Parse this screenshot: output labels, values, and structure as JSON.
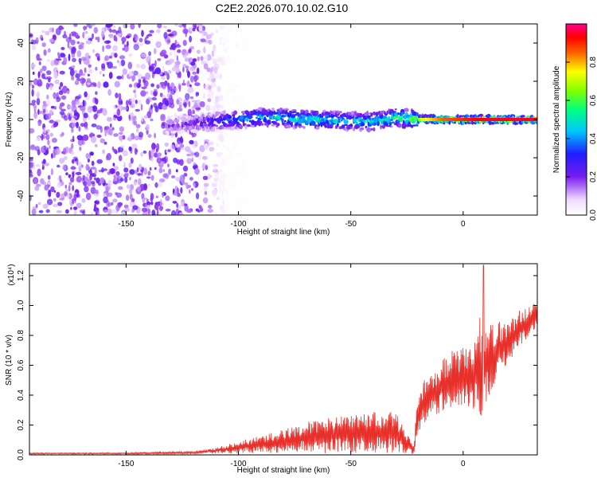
{
  "title": "C2E2.2026.070.10.02.G10",
  "chart_data": [
    {
      "type": "heatmap",
      "title": "C2E2.2026.070.10.02.G10",
      "xlabel": "Height of straight line (km)",
      "ylabel": "Frequency (Hz)",
      "xlim": [
        -193,
        33
      ],
      "ylim": [
        -50,
        50
      ],
      "xticks": [
        "-150",
        "-100",
        "-50",
        "0"
      ],
      "xtick_values": [
        -150,
        -100,
        -50,
        0
      ],
      "yticks": [
        "40",
        "20",
        "0",
        "-20",
        "-40"
      ],
      "ytick_values": [
        40,
        20,
        0,
        -20,
        -40
      ],
      "colorbar": {
        "label": "Normalized spectral amplitude",
        "range": [
          0,
          1
        ],
        "ticks": [
          "0.0",
          "0.2",
          "0.4",
          "0.6",
          "0.8"
        ],
        "tick_values": [
          0.0,
          0.2,
          0.4,
          0.6,
          0.8
        ],
        "colormap": "rainbow (white-violet-blue-cyan-green-yellow-red-magenta)"
      },
      "noise_region_x": [
        -193,
        -108
      ],
      "signal_trace": {
        "x": [
          -132,
          -120,
          -110,
          -100,
          -90,
          -80,
          -70,
          -60,
          -50,
          -40,
          -30,
          -20,
          -10,
          0,
          10,
          20,
          33
        ],
        "frequency": [
          -3,
          -2,
          -1,
          0,
          1,
          1,
          0,
          0,
          -1,
          -1,
          1,
          0,
          0,
          0,
          0,
          0,
          0
        ],
        "peak_amplitude": [
          0.2,
          0.25,
          0.35,
          0.45,
          0.5,
          0.55,
          0.55,
          0.55,
          0.5,
          0.55,
          0.6,
          0.7,
          0.85,
          0.9,
          0.95,
          0.95,
          0.95
        ]
      }
    },
    {
      "type": "line",
      "xlabel": "Height of straight line (km)",
      "ylabel": "SNR (10 * v/v)",
      "y_multiplier": "(x10⁴)",
      "xlim": [
        -193,
        33
      ],
      "ylim": [
        0,
        1.28
      ],
      "xticks": [
        "-150",
        "-100",
        "-50",
        "0"
      ],
      "xtick_values": [
        -150,
        -100,
        -50,
        0
      ],
      "yticks": [
        "0.0",
        "0.2",
        "0.4",
        "0.6",
        "0.8",
        "1.0",
        "1.2"
      ],
      "ytick_values": [
        0.0,
        0.2,
        0.4,
        0.6,
        0.8,
        1.0,
        1.2
      ],
      "color": "#e8302a",
      "envelope": {
        "x": [
          -193,
          -150,
          -120,
          -110,
          -100,
          -90,
          -80,
          -70,
          -60,
          -50,
          -40,
          -30,
          -22,
          -20,
          -15,
          -10,
          -5,
          0,
          5,
          8,
          10,
          15,
          20,
          25,
          30,
          33
        ],
        "mean": [
          0.01,
          0.01,
          0.015,
          0.03,
          0.05,
          0.07,
          0.09,
          0.12,
          0.13,
          0.14,
          0.15,
          0.15,
          0.03,
          0.3,
          0.4,
          0.45,
          0.5,
          0.52,
          0.55,
          0.6,
          0.6,
          0.7,
          0.75,
          0.85,
          0.9,
          0.95
        ],
        "spread": [
          0.005,
          0.005,
          0.01,
          0.02,
          0.04,
          0.06,
          0.08,
          0.1,
          0.12,
          0.13,
          0.14,
          0.14,
          0.03,
          0.15,
          0.15,
          0.18,
          0.2,
          0.2,
          0.25,
          0.35,
          0.25,
          0.2,
          0.15,
          0.12,
          0.1,
          0.08
        ]
      },
      "peak": {
        "x": 9,
        "y": 1.27
      }
    }
  ]
}
